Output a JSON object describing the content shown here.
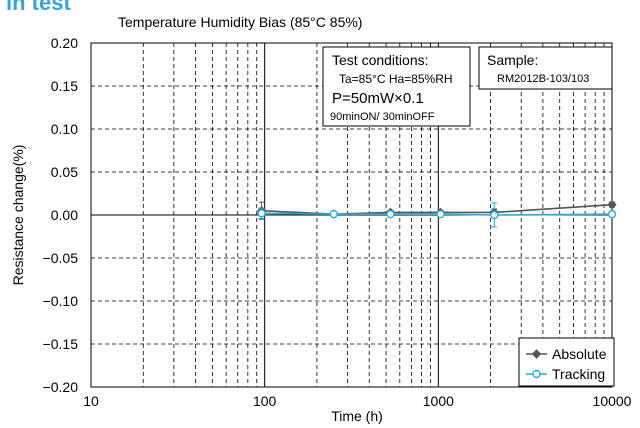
{
  "header": {
    "text": "in test"
  },
  "chart_data": {
    "type": "line",
    "title": "Temperature Humidity Bias (85°C 85%)",
    "xlabel": "Time (h)",
    "ylabel": "Resistance change(%)",
    "x_scale": "log",
    "xlim": [
      10,
      10000
    ],
    "ylim": [
      -0.2,
      0.2
    ],
    "x_ticks": [
      10,
      100,
      1000,
      10000
    ],
    "x_tick_labels": [
      "10",
      "100",
      "1000",
      "10000"
    ],
    "y_ticks": [
      0.2,
      0.15,
      0.1,
      0.05,
      0.0,
      -0.05,
      -0.1,
      -0.15,
      -0.2
    ],
    "y_tick_labels": [
      "0.20",
      "0.15",
      "0.10",
      "0.05",
      "0.00",
      "−0.05",
      "−0.10",
      "−0.15",
      "−0.20"
    ],
    "grid": true,
    "legend_position": "bottom-right",
    "series": [
      {
        "name": "Absolute",
        "color": "#555555",
        "marker": "diamond",
        "x": [
          96,
          250,
          530,
          1030,
          2100,
          10000
        ],
        "y": [
          0.005,
          0.001,
          0.003,
          0.003,
          0.003,
          0.012
        ],
        "err": [
          0.01,
          0.002,
          0.002,
          0.002,
          0.004,
          0.003
        ]
      },
      {
        "name": "Tracking",
        "color": "#2aa8d6",
        "marker": "circle",
        "x": [
          96,
          250,
          530,
          1030,
          2100,
          10000
        ],
        "y": [
          0.002,
          0.001,
          0.001,
          0.001,
          0.0,
          0.001
        ],
        "err": [
          0.006,
          0.002,
          0.002,
          0.002,
          0.014,
          0.003
        ]
      }
    ],
    "annotations": {
      "test_conditions": {
        "title": "Test conditions:",
        "line1": "Ta=85°C Ha=85%RH",
        "line2": "P=50mW×0.1",
        "line3": "90minON/ 30minOFF"
      },
      "sample": {
        "title": "Sample:",
        "value": "RM2012B-103/103"
      }
    }
  }
}
